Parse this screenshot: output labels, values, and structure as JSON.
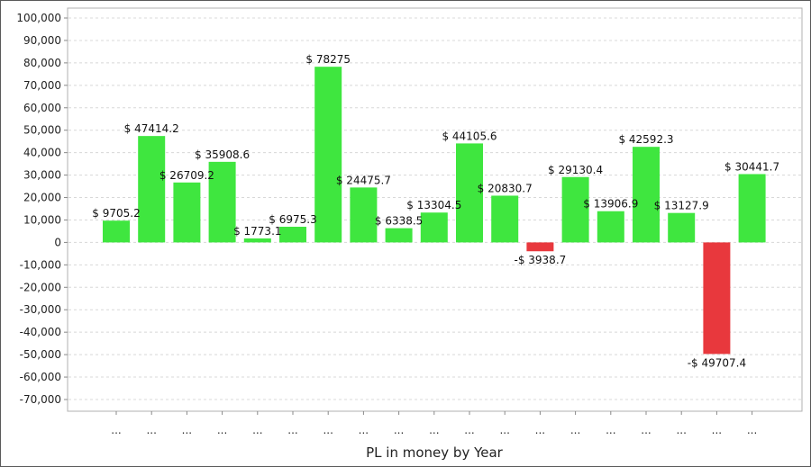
{
  "chart_data": {
    "type": "bar",
    "title": "",
    "xlabel": "PL in money by Year",
    "ylabel": "",
    "ylim": [
      -75000,
      102000
    ],
    "yticks": [
      -70000,
      -60000,
      -50000,
      -40000,
      -30000,
      -20000,
      -10000,
      0,
      10000,
      20000,
      30000,
      40000,
      50000,
      60000,
      70000,
      80000,
      90000,
      100000
    ],
    "ytick_labels": [
      "-70,000",
      "-60,000",
      "-50,000",
      "-40,000",
      "-30,000",
      "-20,000",
      "-10,000",
      "0",
      "10,000",
      "20,000",
      "30,000",
      "40,000",
      "50,000",
      "60,000",
      "70,000",
      "80,000",
      "90,000",
      "100,000"
    ],
    "categories": [
      "...",
      "...",
      "...",
      "...",
      "...",
      "...",
      "...",
      "...",
      "...",
      "...",
      "...",
      "...",
      "...",
      "...",
      "...",
      "...",
      "...",
      "...",
      "..."
    ],
    "values": [
      9705.2,
      47414.2,
      26709.2,
      35908.6,
      1773.1,
      6975.3,
      78275,
      24475.7,
      6338.5,
      13304.5,
      44105.6,
      20830.7,
      -3938.7,
      29130.4,
      13906.9,
      42592.3,
      13127.9,
      -49707.4,
      30441.7
    ],
    "data_labels": [
      "$ 9705.2",
      "$ 47414.2",
      "$ 26709.2",
      "$ 35908.6",
      "$ 1773.1",
      "$ 6975.3",
      "$ 78275",
      "$ 24475.7",
      "$ 6338.5",
      "$ 13304.5",
      "$ 44105.6",
      "$ 20830.7",
      "-$ 3938.7",
      "$ 29130.4",
      "$ 13906.9",
      "$ 42592.3",
      "$ 13127.9",
      "-$ 49707.4",
      "$ 30441.7"
    ],
    "grid": true,
    "legend": "none",
    "colors": {
      "positive": "#3fe63f",
      "negative": "#e8383d",
      "grid": "#d8d8d8",
      "axis": "#888888"
    }
  }
}
